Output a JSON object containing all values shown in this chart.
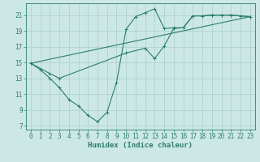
{
  "title": "",
  "xlabel": "Humidex (Indice chaleur)",
  "ylabel": "",
  "bg_color": "#cce8e4",
  "line_color": "#2d7d6e",
  "grid_color": "#aacfcb",
  "xlim": [
    -0.5,
    23.5
  ],
  "ylim": [
    6.5,
    22.5
  ],
  "xticks": [
    0,
    1,
    2,
    3,
    4,
    5,
    6,
    7,
    8,
    9,
    10,
    11,
    12,
    13,
    14,
    15,
    16,
    17,
    18,
    19,
    20,
    21,
    22,
    23
  ],
  "yticks": [
    7,
    9,
    11,
    13,
    15,
    17,
    19,
    21
  ],
  "curve1_x": [
    0,
    1,
    2,
    3,
    4,
    5,
    6,
    7,
    8,
    9,
    10,
    11,
    12,
    13,
    14,
    15,
    16,
    17,
    18,
    19,
    20,
    21,
    22,
    23
  ],
  "curve1_y": [
    14.9,
    14.1,
    13.0,
    11.8,
    10.3,
    9.5,
    8.3,
    7.5,
    8.7,
    12.5,
    19.2,
    20.8,
    21.3,
    21.8,
    19.3,
    19.4,
    19.4,
    20.9,
    20.9,
    21.0,
    21.0,
    21.0,
    20.9,
    20.8
  ],
  "curve2_x": [
    0,
    2,
    3,
    10,
    12,
    13,
    14,
    15,
    16,
    17,
    18,
    19,
    20,
    21,
    22,
    23
  ],
  "curve2_y": [
    14.9,
    13.6,
    13.0,
    16.2,
    16.8,
    15.5,
    17.1,
    19.3,
    19.4,
    20.9,
    20.9,
    21.0,
    21.0,
    21.0,
    20.9,
    20.8
  ],
  "curve3_x": [
    0,
    23
  ],
  "curve3_y": [
    14.9,
    20.8
  ],
  "marker_size": 3,
  "linewidth": 0.8,
  "tick_fontsize": 5.5,
  "xlabel_fontsize": 6.5
}
